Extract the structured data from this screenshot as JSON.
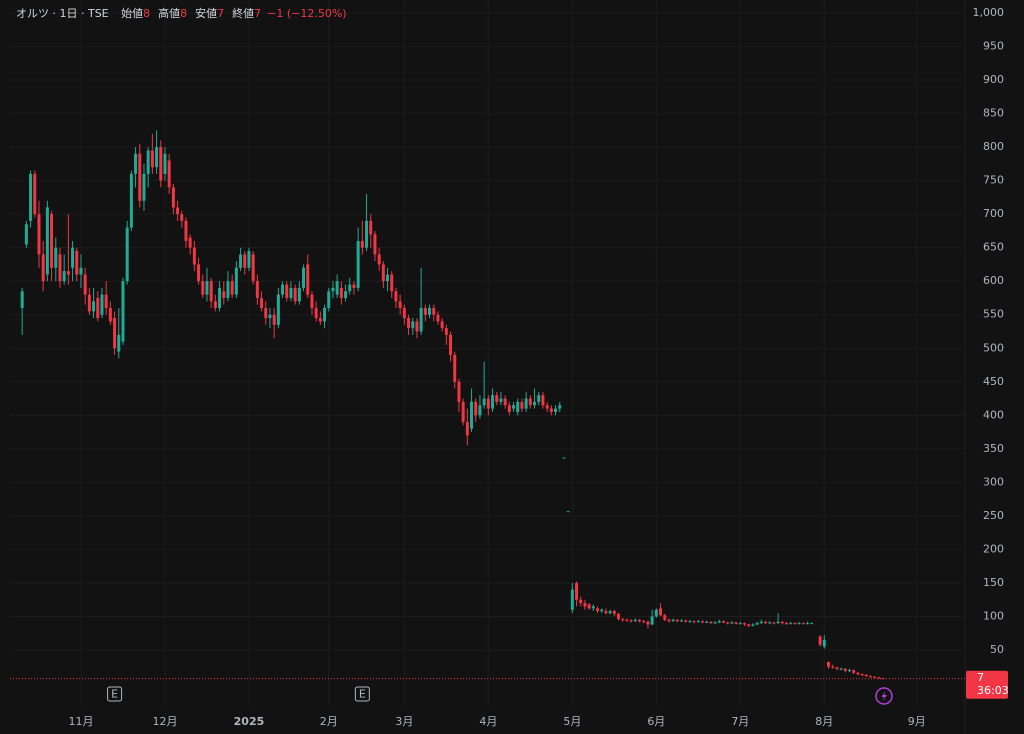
{
  "header": {
    "symbol": "オルツ · 1日 · TSE",
    "open_label": "始値",
    "high_label": "高値",
    "low_label": "安値",
    "close_label": "終値",
    "change": "−1 (−12.50%)"
  },
  "chart_data": {
    "type": "candlestick",
    "x": [
      0,
      1,
      2,
      3,
      4,
      5,
      6,
      7,
      8,
      9,
      10,
      11,
      12,
      13,
      14,
      15,
      16,
      17,
      18,
      19,
      20,
      21,
      22,
      23,
      24,
      25,
      26,
      27,
      28,
      29,
      30,
      31,
      32,
      33,
      34,
      35,
      36,
      37,
      38,
      39,
      40,
      41,
      42,
      43,
      44,
      45,
      46,
      47,
      48,
      49,
      50,
      51,
      52,
      53,
      54,
      55,
      56,
      57,
      58,
      59,
      60,
      61,
      62,
      63,
      64,
      65,
      66,
      67,
      68,
      69,
      70,
      71,
      72,
      73,
      74,
      75,
      76,
      77,
      78,
      79,
      80,
      81,
      82,
      83,
      84,
      85,
      86,
      87,
      88,
      89,
      90,
      91,
      92,
      93,
      94,
      95,
      96,
      97,
      98,
      99,
      100,
      101,
      102,
      103,
      104,
      105,
      106,
      107,
      108,
      109,
      110,
      111,
      112,
      113,
      114,
      115,
      116,
      117,
      118,
      119,
      120,
      121,
      122,
      123,
      124,
      125,
      126,
      127,
      128,
      129,
      130,
      131,
      132,
      133,
      134,
      135,
      136,
      137,
      138,
      139,
      140,
      141,
      142,
      143,
      144,
      145,
      146,
      147,
      148,
      149,
      150,
      151,
      152,
      153,
      154,
      155,
      156,
      157,
      158,
      159,
      160,
      161,
      162,
      163,
      164,
      165,
      166,
      167,
      168,
      169,
      170,
      171,
      172,
      173,
      174,
      175,
      176,
      177,
      178,
      179,
      180,
      181,
      182,
      183,
      184,
      185,
      186,
      187,
      188,
      190,
      191,
      192,
      193,
      194,
      195,
      196,
      197,
      198,
      199,
      200,
      201,
      202,
      203,
      204,
      205
    ],
    "open": [
      560,
      655,
      690,
      760,
      700,
      640,
      610,
      700,
      620,
      640,
      600,
      615,
      620,
      645,
      610,
      610,
      580,
      555,
      575,
      550,
      580,
      560,
      545,
      495,
      510,
      600,
      680,
      760,
      790,
      720,
      760,
      795,
      770,
      800,
      760,
      780,
      740,
      710,
      700,
      690,
      665,
      650,
      625,
      600,
      580,
      600,
      570,
      560,
      585,
      575,
      600,
      580,
      620,
      640,
      620,
      640,
      600,
      575,
      560,
      545,
      550,
      535,
      580,
      595,
      575,
      590,
      570,
      590,
      625,
      580,
      560,
      545,
      540,
      560,
      585,
      580,
      590,
      575,
      585,
      595,
      590,
      660,
      650,
      690,
      670,
      640,
      625,
      600,
      610,
      585,
      570,
      560,
      545,
      530,
      540,
      525,
      560,
      550,
      560,
      550,
      540,
      530,
      520,
      490,
      450,
      420,
      390,
      380,
      420,
      400,
      415,
      425,
      410,
      430,
      420,
      425,
      415,
      410,
      405,
      420,
      410,
      425,
      415,
      420,
      430,
      415,
      410,
      405,
      410,
      337,
      257,
      110,
      150,
      125,
      120,
      118,
      112,
      112,
      108,
      108,
      105,
      108,
      104,
      96,
      95,
      94,
      93,
      95,
      93,
      92,
      88,
      100,
      112,
      102,
      95,
      93,
      95,
      93,
      94,
      92,
      93,
      92,
      93,
      91,
      92,
      90,
      91,
      93,
      91,
      90,
      91,
      89,
      90,
      88,
      86,
      88,
      90,
      92,
      90,
      91,
      90,
      92,
      90,
      89,
      90,
      89,
      90,
      89,
      90,
      70,
      55,
      32,
      25,
      24,
      22,
      22,
      19,
      20,
      16,
      14,
      13,
      11,
      10,
      9,
      8
    ],
    "high": [
      590,
      690,
      765,
      765,
      720,
      660,
      720,
      705,
      665,
      650,
      640,
      700,
      660,
      650,
      640,
      620,
      590,
      590,
      585,
      590,
      600,
      570,
      555,
      560,
      605,
      690,
      765,
      800,
      805,
      775,
      800,
      820,
      825,
      810,
      800,
      790,
      745,
      720,
      705,
      695,
      670,
      660,
      635,
      610,
      620,
      605,
      580,
      600,
      600,
      615,
      610,
      630,
      650,
      645,
      650,
      645,
      610,
      585,
      570,
      560,
      560,
      590,
      600,
      600,
      600,
      595,
      600,
      625,
      640,
      585,
      570,
      555,
      565,
      590,
      600,
      610,
      600,
      595,
      605,
      600,
      680,
      690,
      730,
      700,
      675,
      650,
      630,
      620,
      615,
      590,
      580,
      565,
      550,
      545,
      545,
      620,
      565,
      565,
      565,
      555,
      545,
      535,
      525,
      495,
      455,
      425,
      410,
      440,
      425,
      430,
      480,
      430,
      440,
      435,
      435,
      430,
      420,
      420,
      425,
      425,
      435,
      430,
      440,
      435,
      435,
      420,
      415,
      415,
      420,
      337,
      257,
      150,
      152,
      130,
      125,
      120,
      118,
      115,
      112,
      112,
      110,
      110,
      105,
      98,
      97,
      96,
      97,
      96,
      95,
      94,
      110,
      112,
      120,
      104,
      97,
      97,
      96,
      96,
      95,
      95,
      94,
      95,
      94,
      94,
      93,
      93,
      95,
      94,
      92,
      93,
      92,
      92,
      91,
      89,
      90,
      92,
      95,
      93,
      93,
      92,
      105,
      93,
      92,
      92,
      91,
      92,
      91,
      92,
      91,
      72,
      72,
      33,
      28,
      25,
      24,
      23,
      22,
      21,
      17,
      15,
      14,
      12,
      11,
      10,
      8
    ],
    "low": [
      520,
      650,
      680,
      695,
      620,
      585,
      600,
      600,
      600,
      590,
      595,
      595,
      600,
      600,
      590,
      565,
      550,
      545,
      540,
      545,
      550,
      535,
      490,
      485,
      505,
      595,
      675,
      740,
      710,
      705,
      740,
      760,
      760,
      740,
      750,
      730,
      700,
      690,
      680,
      650,
      640,
      615,
      595,
      575,
      570,
      560,
      555,
      555,
      565,
      570,
      575,
      575,
      615,
      610,
      615,
      595,
      565,
      555,
      535,
      530,
      515,
      530,
      575,
      570,
      570,
      565,
      565,
      585,
      575,
      550,
      540,
      535,
      530,
      555,
      575,
      575,
      565,
      570,
      580,
      580,
      585,
      640,
      645,
      650,
      630,
      615,
      590,
      585,
      575,
      560,
      550,
      535,
      520,
      520,
      515,
      520,
      540,
      545,
      540,
      535,
      525,
      505,
      480,
      440,
      405,
      385,
      355,
      375,
      390,
      395,
      410,
      400,
      405,
      415,
      415,
      410,
      400,
      405,
      400,
      405,
      405,
      410,
      410,
      415,
      410,
      405,
      400,
      400,
      405,
      337,
      257,
      105,
      115,
      115,
      110,
      110,
      108,
      105,
      105,
      103,
      103,
      100,
      94,
      92,
      92,
      91,
      92,
      91,
      90,
      82,
      87,
      98,
      100,
      93,
      91,
      92,
      91,
      92,
      91,
      91,
      90,
      91,
      90,
      90,
      89,
      89,
      90,
      90,
      88,
      89,
      88,
      88,
      86,
      84,
      85,
      87,
      89,
      89,
      89,
      88,
      89,
      88,
      88,
      88,
      88,
      88,
      88,
      88,
      89,
      55,
      52,
      22,
      22,
      20,
      20,
      17,
      17,
      14,
      12,
      11,
      10,
      9,
      8,
      7,
      7
    ],
    "close": [
      585,
      685,
      760,
      700,
      640,
      600,
      710,
      620,
      650,
      600,
      615,
      610,
      650,
      610,
      620,
      580,
      555,
      570,
      545,
      580,
      560,
      540,
      500,
      520,
      600,
      680,
      760,
      790,
      720,
      760,
      795,
      770,
      800,
      750,
      790,
      740,
      710,
      700,
      690,
      660,
      650,
      625,
      600,
      580,
      600,
      570,
      560,
      590,
      575,
      600,
      580,
      620,
      640,
      620,
      645,
      600,
      575,
      560,
      545,
      550,
      535,
      580,
      595,
      575,
      590,
      570,
      590,
      620,
      580,
      560,
      545,
      540,
      560,
      585,
      590,
      600,
      575,
      585,
      595,
      590,
      660,
      650,
      690,
      670,
      640,
      625,
      600,
      610,
      585,
      570,
      560,
      545,
      530,
      540,
      525,
      560,
      550,
      560,
      550,
      540,
      530,
      520,
      490,
      450,
      420,
      390,
      370,
      420,
      400,
      415,
      425,
      410,
      430,
      420,
      425,
      415,
      405,
      415,
      420,
      410,
      425,
      415,
      420,
      430,
      415,
      410,
      405,
      410,
      415,
      337,
      257,
      140,
      125,
      120,
      115,
      112,
      115,
      108,
      110,
      105,
      108,
      104,
      96,
      95,
      94,
      93,
      95,
      93,
      92,
      88,
      100,
      110,
      102,
      95,
      93,
      95,
      93,
      94,
      92,
      93,
      92,
      93,
      91,
      92,
      90,
      91,
      93,
      91,
      90,
      91,
      89,
      90,
      88,
      86,
      88,
      90,
      92,
      90,
      91,
      90,
      92,
      90,
      89,
      90,
      89,
      90,
      89,
      90,
      90,
      58,
      65,
      25,
      24,
      22,
      22,
      19,
      20,
      16,
      14,
      13,
      11,
      10,
      9,
      8,
      7
    ],
    "up_color": "#22ab94",
    "down_color": "#f23645",
    "xlim": [
      -2.9,
      224.5
    ],
    "ylim": [
      0,
      1019.4
    ],
    "xticks": [
      {
        "value": 14,
        "label": "11月"
      },
      {
        "value": 34,
        "label": "12月"
      },
      {
        "value": 54,
        "label": "2025"
      },
      {
        "value": 73,
        "label": "2月"
      },
      {
        "value": 91,
        "label": "3月"
      },
      {
        "value": 111,
        "label": "4月"
      },
      {
        "value": 131,
        "label": "5月"
      },
      {
        "value": 151,
        "label": "6月"
      },
      {
        "value": 171,
        "label": "7月"
      },
      {
        "value": 191,
        "label": "8月"
      },
      {
        "value": 213,
        "label": "9月"
      }
    ],
    "yticks": [
      50,
      100,
      150,
      200,
      250,
      300,
      350,
      400,
      450,
      500,
      550,
      600,
      650,
      700,
      750,
      800,
      850,
      900,
      950,
      {
        "value": 1000,
        "label": "1,000"
      }
    ],
    "grid": true,
    "earnings": [
      {
        "x": 22,
        "label": "E"
      },
      {
        "x": 81,
        "label": "E"
      }
    ],
    "countdown": "36:03"
  }
}
